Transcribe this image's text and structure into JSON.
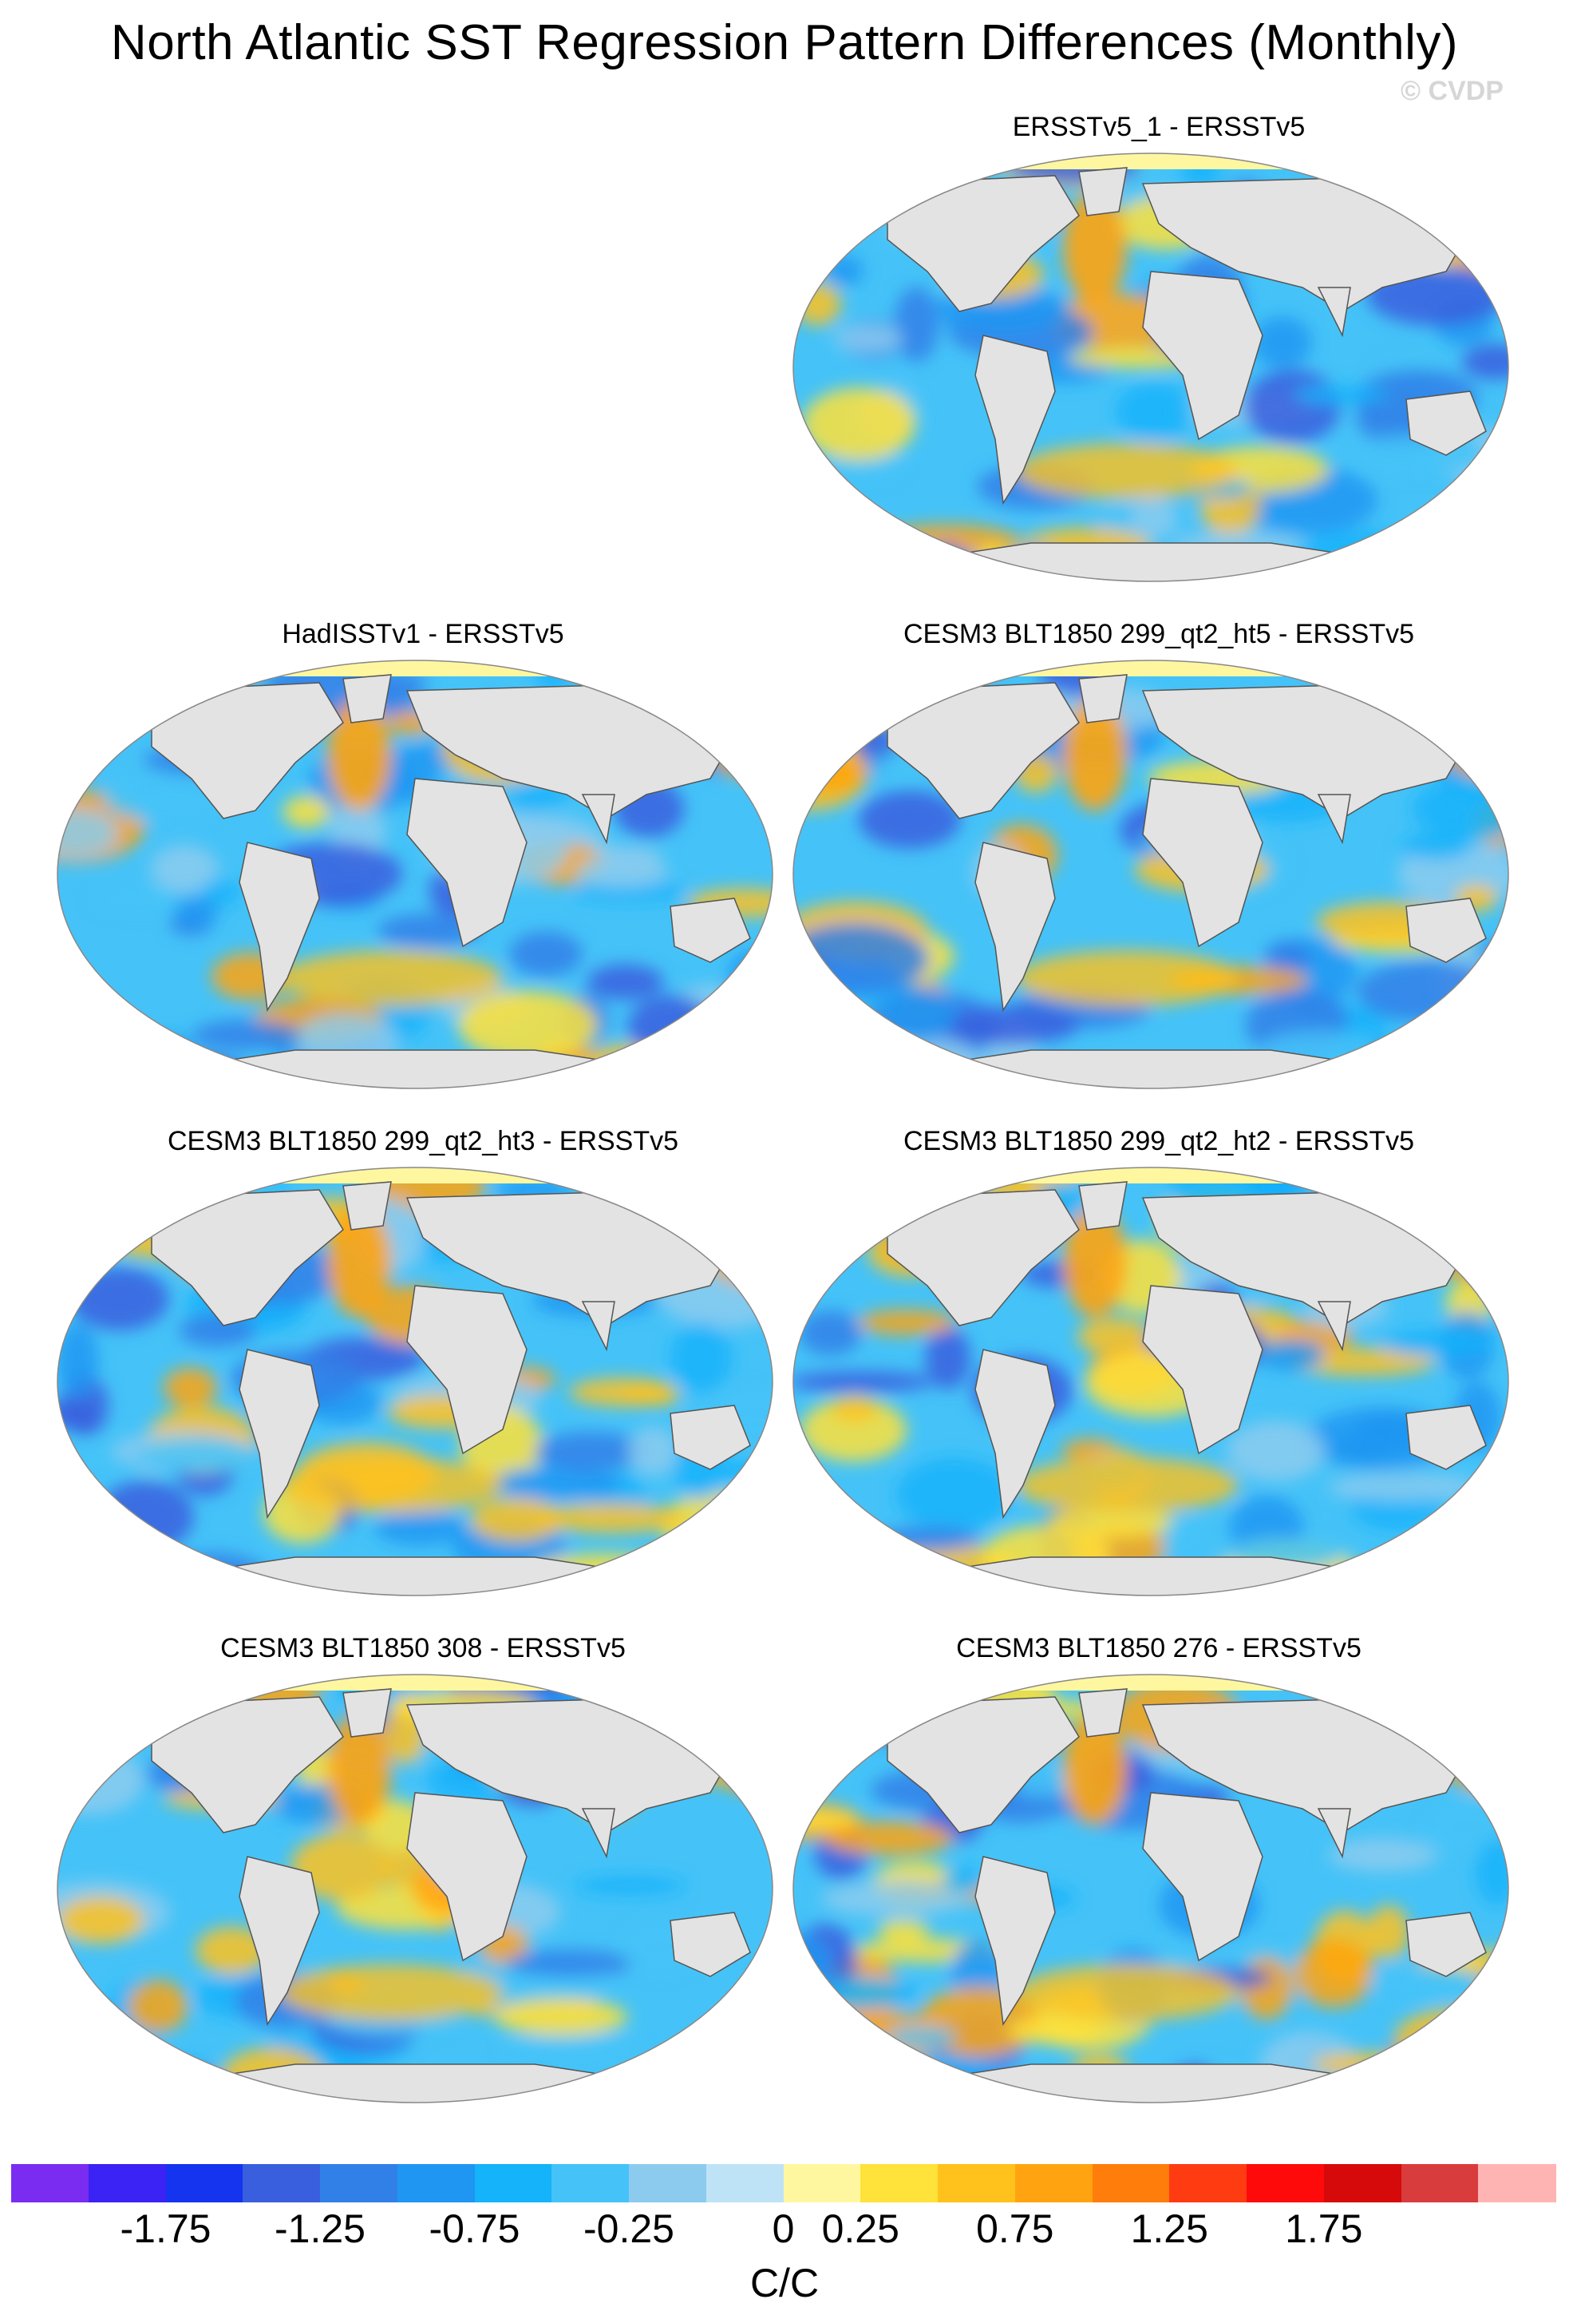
{
  "title": "North Atlantic SST Regression Pattern Differences (Monthly)",
  "watermark": "© CVDP",
  "panels": [
    {
      "title": "ERSSTv5_1 - ERSSTv5",
      "col": 1,
      "row": 0
    },
    {
      "title": "HadISSTv1 - ERSSTv5",
      "col": 0,
      "row": 1
    },
    {
      "title": "CESM3 BLT1850 299_qt2_ht5 - ERSSTv5",
      "col": 1,
      "row": 1
    },
    {
      "title": "CESM3 BLT1850 299_qt2_ht3 - ERSSTv5",
      "col": 0,
      "row": 2
    },
    {
      "title": "CESM3 BLT1850 299_qt2_ht2 - ERSSTv5",
      "col": 1,
      "row": 2
    },
    {
      "title": "CESM3 BLT1850 308 - ERSSTv5",
      "col": 0,
      "row": 3
    },
    {
      "title": "CESM3 BLT1850 276 - ERSSTv5",
      "col": 1,
      "row": 3
    }
  ],
  "colorbar": {
    "units": "C/C",
    "colors": [
      "#7a2cf0",
      "#3b22f5",
      "#1434f0",
      "#3a5fde",
      "#3180e8",
      "#1f96f2",
      "#14b3fa",
      "#45c3f8",
      "#8ccbee",
      "#bfe3f6",
      "#fff7a0",
      "#ffe23a",
      "#ffc21c",
      "#ffa410",
      "#ff7d0a",
      "#ff3b12",
      "#ff0a0a",
      "#d60a0a",
      "#d93c3c",
      "#ffb4b4"
    ],
    "tick_labels": [
      "-1.75",
      "-1.25",
      "-0.75",
      "-0.25",
      "0",
      "0.25",
      "0.75",
      "1.25",
      "1.75"
    ],
    "tick_boundaries": [
      2,
      4,
      6,
      8,
      10,
      11,
      13,
      15,
      17
    ]
  }
}
